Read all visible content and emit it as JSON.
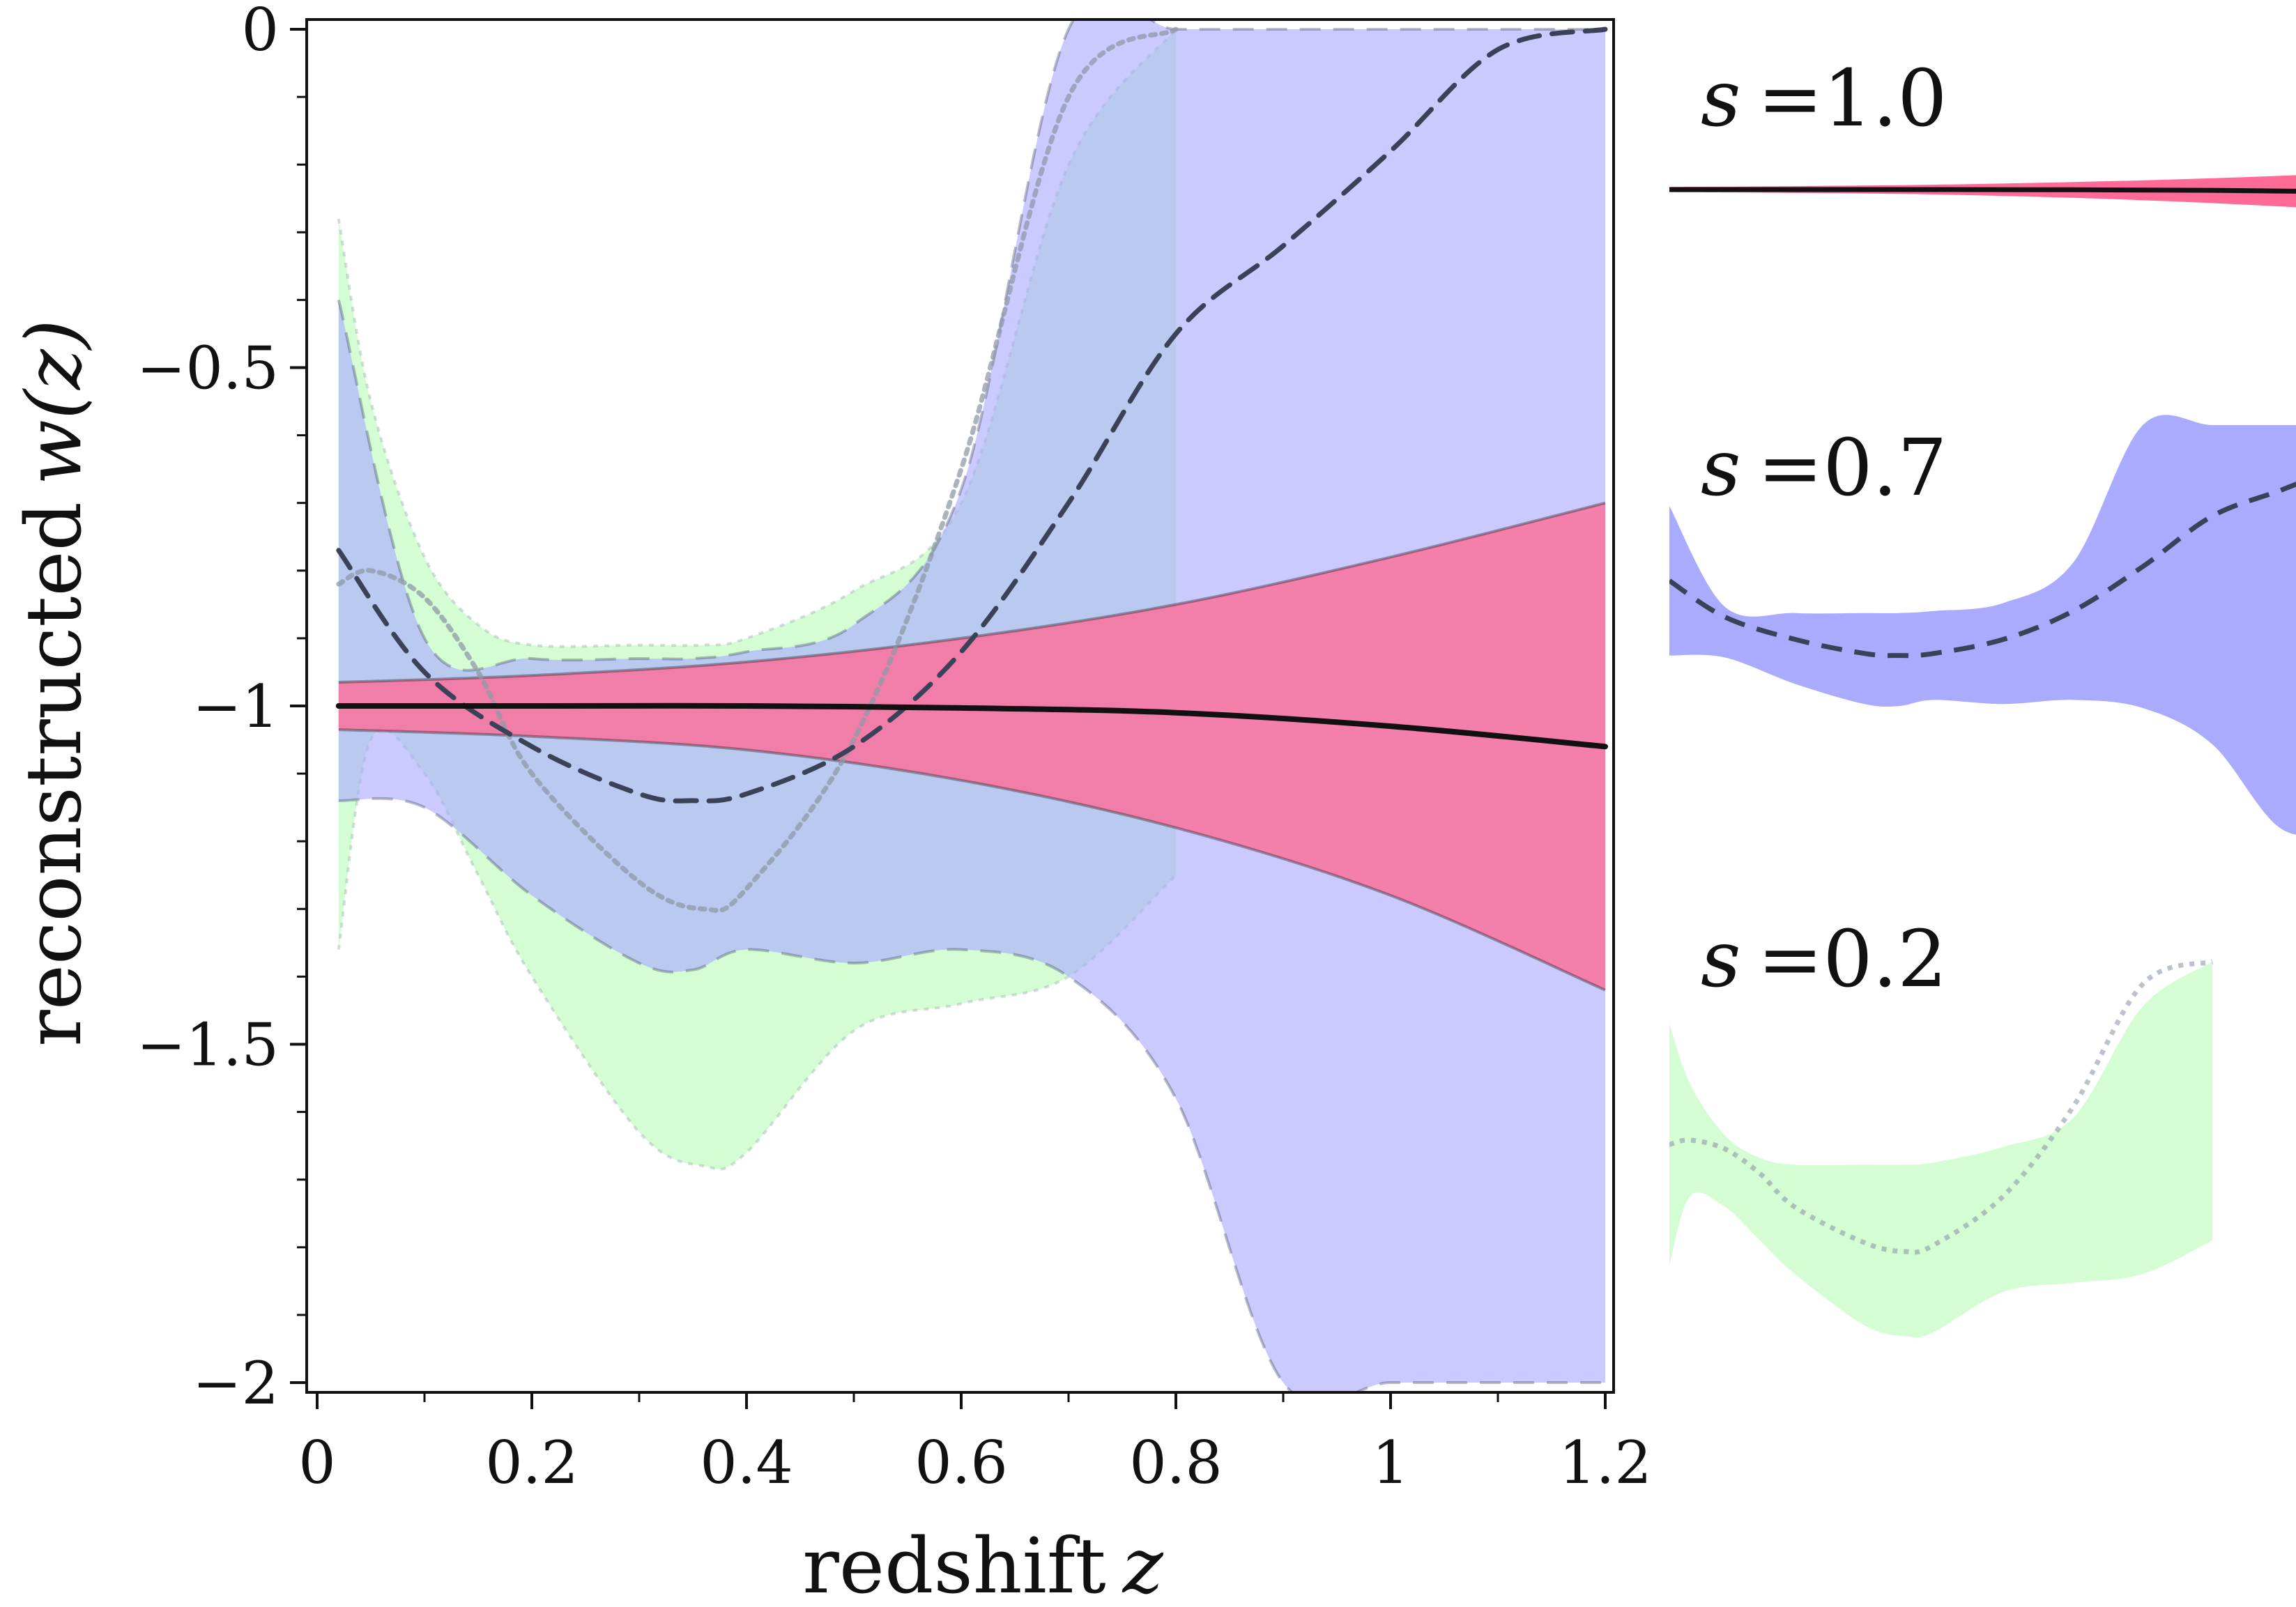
{
  "chart_data": {
    "type": "area",
    "title": "",
    "xlabel": "redshift",
    "xlabel_var": "z",
    "ylabel": "reconstructed",
    "ylabel_var": "w(z)",
    "xlim": [
      0,
      1.2
    ],
    "ylim": [
      -2,
      0
    ],
    "xticks": [
      0,
      0.2,
      0.4,
      0.6,
      0.8,
      1,
      1.2
    ],
    "xtick_labels": [
      "0",
      "0.2",
      "0.4",
      "0.6",
      "0.8",
      "1",
      "1.2"
    ],
    "yticks": [
      0,
      -0.5,
      -1,
      -1.5,
      -2
    ],
    "ytick_labels": [
      "0",
      "−0.5",
      "−1",
      "−1.5",
      "−2"
    ],
    "series": [
      {
        "name": "s = 0.2",
        "line_style": "dotted",
        "fill": "#d4fdd4",
        "line_color": "#8e9aa8",
        "x": [
          0.02,
          0.05,
          0.1,
          0.15,
          0.2,
          0.3,
          0.36,
          0.4,
          0.5,
          0.6,
          0.7,
          0.8
        ],
        "mean": [
          -0.82,
          -0.8,
          -0.84,
          -0.95,
          -1.1,
          -1.26,
          -1.3,
          -1.27,
          -1.05,
          -0.65,
          -0.1,
          0.0
        ],
        "upper": [
          -0.28,
          -0.55,
          -0.78,
          -0.88,
          -0.91,
          -0.91,
          -0.91,
          -0.9,
          -0.83,
          -0.7,
          -0.2,
          0.0
        ],
        "lower": [
          -1.36,
          -1.05,
          -1.1,
          -1.25,
          -1.4,
          -1.63,
          -1.68,
          -1.66,
          -1.48,
          -1.44,
          -1.4,
          -1.25
        ]
      },
      {
        "name": "s = 0.7",
        "line_style": "dashed",
        "fill": "#aaaaff",
        "line_color": "#3a4258",
        "x": [
          0.02,
          0.1,
          0.2,
          0.3,
          0.35,
          0.4,
          0.5,
          0.6,
          0.7,
          0.8,
          0.9,
          1.0,
          1.1,
          1.2
        ],
        "mean": [
          -0.77,
          -0.95,
          -1.06,
          -1.13,
          -1.14,
          -1.13,
          -1.06,
          -0.92,
          -0.7,
          -0.45,
          -0.32,
          -0.18,
          -0.03,
          0.0
        ],
        "upper": [
          -0.4,
          -0.9,
          -0.93,
          -0.93,
          -0.93,
          -0.92,
          -0.88,
          -0.68,
          0.0,
          0.0,
          0.0,
          0.0,
          0.0,
          0.0
        ],
        "lower": [
          -1.14,
          -1.15,
          -1.28,
          -1.38,
          -1.39,
          -1.36,
          -1.38,
          -1.36,
          -1.4,
          -1.58,
          -2.0,
          -2.0,
          -2.0,
          -2.0
        ]
      },
      {
        "name": "s = 1.0",
        "line_style": "solid",
        "fill": "#ff6b96",
        "line_color": "#111111",
        "x": [
          0.02,
          0.2,
          0.4,
          0.6,
          0.8,
          1.0,
          1.2
        ],
        "mean": [
          -1.0,
          -1.0,
          -1.0,
          -1.003,
          -1.01,
          -1.03,
          -1.06
        ],
        "upper": [
          -0.965,
          -0.955,
          -0.935,
          -0.9,
          -0.85,
          -0.78,
          -0.7
        ],
        "lower": [
          -1.035,
          -1.045,
          -1.065,
          -1.11,
          -1.18,
          -1.28,
          -1.42
        ]
      }
    ],
    "legend": [
      {
        "label": "s =1.0",
        "var": "s",
        "value": "=1.0",
        "fill": "#ff6b96",
        "line_style": "solid"
      },
      {
        "label": "s =0.7",
        "var": "s",
        "value": "=0.7",
        "fill": "#aaaaff",
        "line_style": "dashed"
      },
      {
        "label": "s =0.2",
        "var": "s",
        "value": "=0.2",
        "fill": "#d4fdd4",
        "line_style": "dotted"
      }
    ],
    "legend_position": "right",
    "grid": false
  }
}
